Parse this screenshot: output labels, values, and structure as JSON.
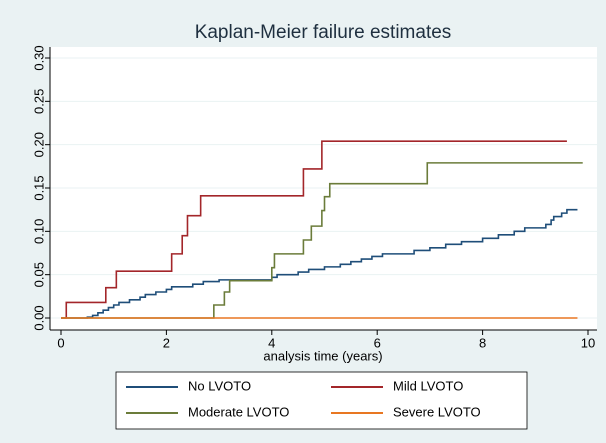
{
  "chart_data": {
    "type": "line",
    "step": "post",
    "title": "Kaplan-Meier failure estimates",
    "x_label": "analysis time (years)",
    "xlim": [
      0,
      10
    ],
    "xticks": [
      0,
      2,
      4,
      6,
      8,
      10
    ],
    "ylim": [
      0,
      0.3
    ],
    "yticks": [
      {
        "value": 0,
        "label": "0.00"
      },
      {
        "value": 0.05,
        "label": "0.05"
      },
      {
        "value": 0.1,
        "label": "0.10"
      },
      {
        "value": 0.15,
        "label": "0.15"
      },
      {
        "value": 0.2,
        "label": "0.20"
      },
      {
        "value": 0.25,
        "label": "0.25"
      },
      {
        "value": 0.3,
        "label": "0.30"
      }
    ],
    "grid": true,
    "legend": "bottom",
    "series": [
      {
        "name": "No LVOTO",
        "color": "#1f4e79",
        "x": [
          0,
          0.5,
          0.6,
          0.7,
          0.8,
          0.9,
          1.0,
          1.1,
          1.3,
          1.5,
          1.6,
          1.8,
          2.0,
          2.1,
          2.5,
          2.7,
          3.0,
          4.0,
          4.1,
          4.5,
          4.7,
          5.0,
          5.3,
          5.5,
          5.7,
          5.9,
          6.1,
          6.7,
          7.0,
          7.3,
          7.6,
          8.0,
          8.3,
          8.6,
          8.8,
          9.2,
          9.3,
          9.35,
          9.5,
          9.6,
          9.8
        ],
        "values": [
          0,
          0.001,
          0.003,
          0.006,
          0.009,
          0.012,
          0.015,
          0.018,
          0.021,
          0.024,
          0.027,
          0.03,
          0.033,
          0.036,
          0.039,
          0.042,
          0.044,
          0.047,
          0.05,
          0.053,
          0.056,
          0.059,
          0.062,
          0.065,
          0.068,
          0.071,
          0.074,
          0.078,
          0.081,
          0.085,
          0.088,
          0.092,
          0.096,
          0.1,
          0.104,
          0.108,
          0.113,
          0.117,
          0.121,
          0.125,
          0.125
        ]
      },
      {
        "name": "Mild LVOTO",
        "color": "#a3262a",
        "x": [
          0,
          0.1,
          0.85,
          1.05,
          2.1,
          2.3,
          2.4,
          2.65,
          4.6,
          4.95,
          9.6
        ],
        "values": [
          0,
          0.018,
          0.035,
          0.054,
          0.074,
          0.095,
          0.118,
          0.141,
          0.172,
          0.204,
          0.204
        ]
      },
      {
        "name": "Moderate LVOTO",
        "color": "#6b7c3a",
        "x": [
          0,
          2.9,
          3.1,
          3.2,
          4.0,
          4.05,
          4.6,
          4.75,
          4.95,
          5.0,
          5.1,
          6.95,
          9.9
        ],
        "values": [
          0,
          0.015,
          0.03,
          0.043,
          0.058,
          0.074,
          0.09,
          0.106,
          0.124,
          0.14,
          0.155,
          0.179,
          0.179
        ]
      },
      {
        "name": "Severe LVOTO",
        "color": "#e87722",
        "x": [
          0,
          9.8
        ],
        "values": [
          0,
          0
        ]
      }
    ]
  }
}
